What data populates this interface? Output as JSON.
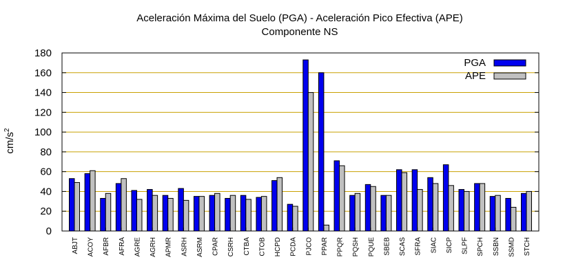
{
  "chart_data": {
    "type": "bar",
    "title": "Aceleración Máxima del Suelo (PGA) -  Aceleración Pico Efectiva (APE)",
    "subtitle": "Componente NS",
    "xlabel": "",
    "ylabel": "cm/s",
    "ylabel_superscript": "2",
    "ylim": [
      0,
      180
    ],
    "yticks": [
      0,
      20,
      40,
      60,
      80,
      100,
      120,
      140,
      160,
      180
    ],
    "grid": true,
    "legend_position": "top-right",
    "categories": [
      "ABJT",
      "ACOY",
      "AFBR",
      "AFRA",
      "AGRE",
      "AGRH",
      "APMR",
      "ASRH",
      "ASRM",
      "CPAR",
      "CSRH",
      "CTBA",
      "CTOB",
      "HCPD",
      "PCDA",
      "PJCO",
      "PPAR",
      "PPQR",
      "PQSH",
      "PQUE",
      "SBEB",
      "SCAS",
      "SFRA",
      "SIAC",
      "SICP",
      "SLPF",
      "SPCH",
      "SSBN",
      "SSMD",
      "STCH"
    ],
    "series": [
      {
        "name": "PGA",
        "color": "#0000ee",
        "values": [
          53,
          58,
          33,
          48,
          41,
          42,
          36,
          43,
          35,
          36,
          33,
          36,
          34,
          51,
          27,
          173,
          160,
          71,
          36,
          47,
          36,
          62,
          62,
          54,
          67,
          42,
          48,
          35,
          33,
          38
        ]
      },
      {
        "name": "APE",
        "color": "#c0c0c0",
        "values": [
          49,
          61,
          38,
          53,
          32,
          36,
          33,
          31,
          35,
          38,
          36,
          32,
          35,
          54,
          25,
          140,
          6,
          66,
          38,
          45,
          36,
          59,
          42,
          48,
          46,
          40,
          48,
          36,
          24,
          40
        ]
      }
    ],
    "colors": {
      "grid": "#c8a000",
      "axis": "#000000"
    }
  }
}
